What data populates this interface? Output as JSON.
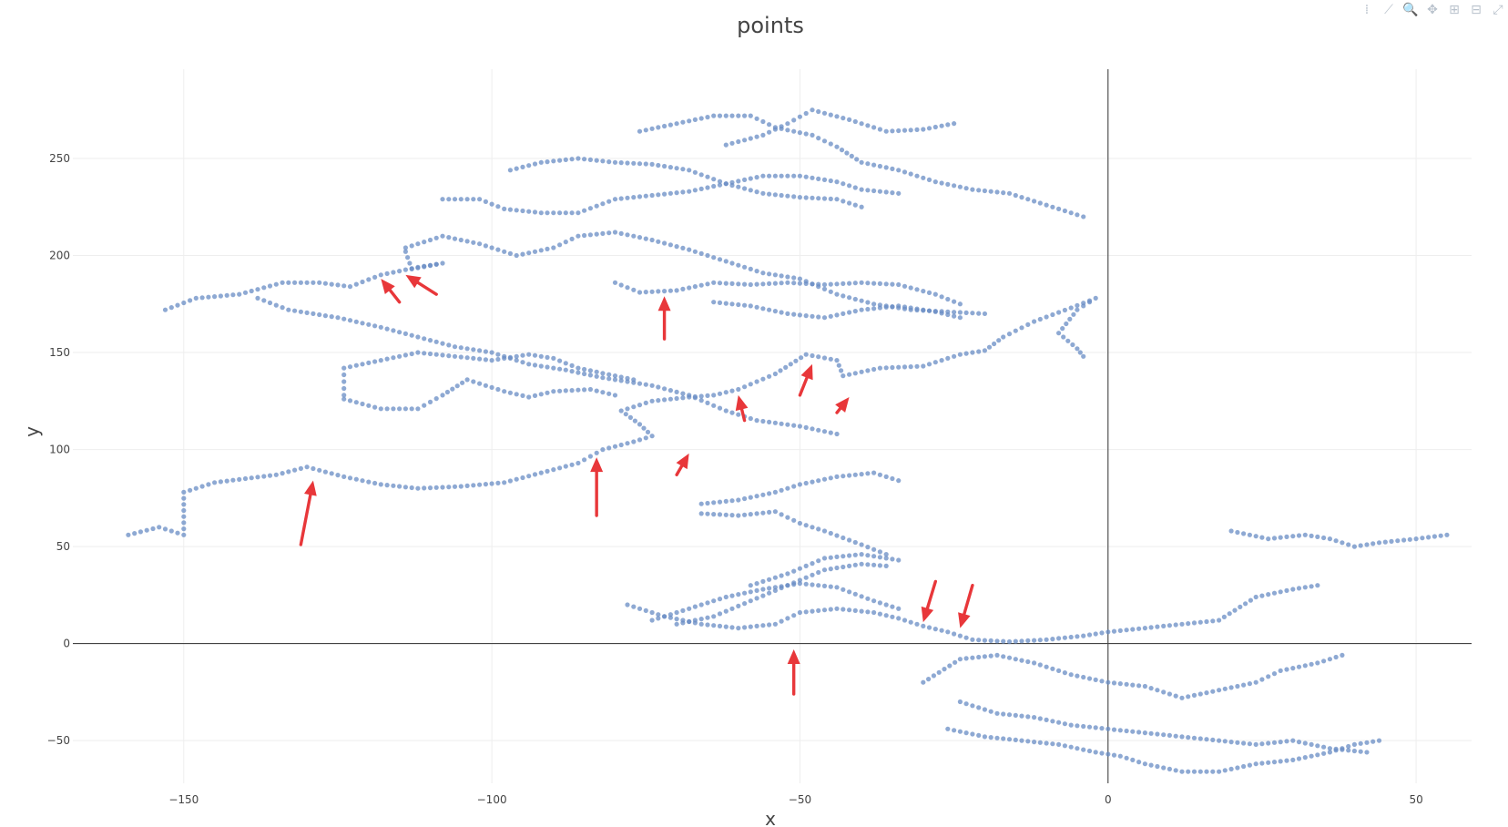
{
  "modebar": [
    {
      "name": "compare-icon",
      "glyph": "⁞"
    },
    {
      "name": "line-icon",
      "glyph": "⟋"
    },
    {
      "name": "zoom-icon",
      "glyph": "🔍"
    },
    {
      "name": "pan-icon",
      "glyph": "✥"
    },
    {
      "name": "zoom-in-icon",
      "glyph": "⊞"
    },
    {
      "name": "zoom-out-icon",
      "glyph": "⊟"
    },
    {
      "name": "autoscale-icon",
      "glyph": "⤢"
    }
  ],
  "chart_data": {
    "type": "scatter",
    "title": "points",
    "xlabel": "x",
    "ylabel": "y",
    "xlim": [
      -168,
      59
    ],
    "ylim": [
      -72,
      296
    ],
    "x_ticks": [
      -150,
      -100,
      -50,
      0,
      50
    ],
    "y_ticks": [
      -50,
      0,
      50,
      100,
      150,
      200,
      250
    ],
    "x_tick_labels": [
      "−150",
      "−100",
      "−50",
      "0",
      "50"
    ],
    "y_tick_labels": [
      "−50",
      "0",
      "50",
      "100",
      "150",
      "200",
      "250"
    ],
    "grid": true,
    "marker_color": "#688cc4",
    "annotation_color": "#e8373a",
    "paths": [
      [
        [
          -159,
          56
        ],
        [
          -154,
          60
        ],
        [
          -150,
          56
        ],
        [
          -150,
          78
        ],
        [
          -145,
          83
        ],
        [
          -140,
          85
        ],
        [
          -135,
          87
        ],
        [
          -130,
          91
        ],
        [
          -124,
          86
        ],
        [
          -118,
          82
        ],
        [
          -112,
          80
        ],
        [
          -105,
          81
        ],
        [
          -98,
          83
        ],
        [
          -92,
          88
        ],
        [
          -86,
          93
        ],
        [
          -82,
          100
        ],
        [
          -77,
          104
        ],
        [
          -74,
          107
        ],
        [
          -76,
          113
        ],
        [
          -79,
          120
        ],
        [
          -74,
          125
        ],
        [
          -68,
          127
        ],
        [
          -64,
          128
        ],
        [
          -60,
          131
        ],
        [
          -54,
          139
        ],
        [
          -49,
          149
        ],
        [
          -44,
          146
        ],
        [
          -43,
          138
        ],
        [
          -37,
          142
        ],
        [
          -30,
          143
        ],
        [
          -24,
          149
        ],
        [
          -20,
          151
        ],
        [
          -17,
          158
        ],
        [
          -12,
          166
        ],
        [
          -6,
          173
        ],
        [
          -2,
          178
        ],
        [
          -5,
          172
        ],
        [
          -8,
          160
        ],
        [
          -5,
          152
        ],
        [
          -4,
          148
        ]
      ],
      [
        [
          -153,
          172
        ],
        [
          -148,
          178
        ],
        [
          -141,
          180
        ],
        [
          -134,
          186
        ],
        [
          -128,
          186
        ],
        [
          -123,
          184
        ],
        [
          -118,
          190
        ],
        [
          -112,
          194
        ],
        [
          -108,
          196
        ],
        [
          -113,
          193
        ],
        [
          -114,
          202
        ]
      ],
      [
        [
          -138,
          178
        ],
        [
          -133,
          172
        ],
        [
          -125,
          168
        ],
        [
          -118,
          163
        ],
        [
          -112,
          158
        ],
        [
          -106,
          153
        ],
        [
          -100,
          150
        ],
        [
          -94,
          144
        ],
        [
          -88,
          141
        ],
        [
          -82,
          137
        ],
        [
          -74,
          133
        ],
        [
          -68,
          128
        ],
        [
          -62,
          120
        ],
        [
          -57,
          115
        ],
        [
          -50,
          112
        ],
        [
          -44,
          108
        ]
      ],
      [
        [
          -114,
          204
        ],
        [
          -108,
          210
        ],
        [
          -102,
          206
        ],
        [
          -96,
          200
        ],
        [
          -90,
          204
        ],
        [
          -86,
          210
        ],
        [
          -80,
          212
        ],
        [
          -74,
          208
        ],
        [
          -68,
          203
        ],
        [
          -62,
          197
        ],
        [
          -56,
          191
        ],
        [
          -50,
          188
        ],
        [
          -44,
          180
        ],
        [
          -38,
          175
        ],
        [
          -32,
          172
        ],
        [
          -26,
          171
        ],
        [
          -20,
          170
        ]
      ],
      [
        [
          -124,
          128
        ],
        [
          -124,
          142
        ],
        [
          -118,
          146
        ],
        [
          -112,
          150
        ],
        [
          -106,
          148
        ],
        [
          -100,
          146
        ],
        [
          -94,
          149
        ],
        [
          -90,
          147
        ],
        [
          -86,
          142
        ],
        [
          -80,
          138
        ],
        [
          -77,
          136
        ]
      ],
      [
        [
          -124,
          126
        ],
        [
          -118,
          121
        ],
        [
          -112,
          121
        ],
        [
          -108,
          128
        ],
        [
          -104,
          136
        ],
        [
          -98,
          130
        ],
        [
          -94,
          127
        ],
        [
          -90,
          130
        ],
        [
          -84,
          131
        ],
        [
          -80,
          128
        ]
      ],
      [
        [
          -108,
          229
        ],
        [
          -102,
          229
        ],
        [
          -98,
          224
        ],
        [
          -92,
          222
        ],
        [
          -86,
          222
        ],
        [
          -80,
          229
        ],
        [
          -74,
          231
        ],
        [
          -68,
          233
        ],
        [
          -62,
          237
        ],
        [
          -56,
          241
        ],
        [
          -50,
          241
        ],
        [
          -44,
          238
        ],
        [
          -40,
          234
        ],
        [
          -34,
          232
        ]
      ],
      [
        [
          -97,
          244
        ],
        [
          -92,
          248
        ],
        [
          -86,
          250
        ],
        [
          -80,
          248
        ],
        [
          -74,
          247
        ],
        [
          -68,
          244
        ],
        [
          -62,
          237
        ],
        [
          -56,
          232
        ],
        [
          -50,
          230
        ],
        [
          -44,
          229
        ],
        [
          -40,
          225
        ]
      ],
      [
        [
          -76,
          264
        ],
        [
          -70,
          268
        ],
        [
          -64,
          272
        ],
        [
          -58,
          272
        ],
        [
          -54,
          266
        ],
        [
          -48,
          262
        ],
        [
          -44,
          256
        ],
        [
          -40,
          248
        ],
        [
          -34,
          244
        ],
        [
          -28,
          238
        ],
        [
          -22,
          234
        ],
        [
          -16,
          232
        ],
        [
          -10,
          226
        ],
        [
          -4,
          220
        ]
      ],
      [
        [
          -62,
          257
        ],
        [
          -56,
          262
        ],
        [
          -52,
          268
        ],
        [
          -48,
          275
        ],
        [
          -42,
          270
        ],
        [
          -36,
          264
        ],
        [
          -30,
          265
        ],
        [
          -25,
          268
        ]
      ],
      [
        [
          -80,
          186
        ],
        [
          -76,
          181
        ],
        [
          -70,
          182
        ],
        [
          -64,
          186
        ],
        [
          -58,
          185
        ],
        [
          -52,
          186
        ],
        [
          -46,
          185
        ],
        [
          -40,
          186
        ],
        [
          -34,
          185
        ],
        [
          -28,
          180
        ],
        [
          -24,
          175
        ]
      ],
      [
        [
          -64,
          176
        ],
        [
          -58,
          174
        ],
        [
          -52,
          170
        ],
        [
          -46,
          168
        ],
        [
          -40,
          172
        ],
        [
          -34,
          174
        ],
        [
          -28,
          171
        ],
        [
          -24,
          168
        ]
      ],
      [
        [
          -66,
          72
        ],
        [
          -60,
          74
        ],
        [
          -54,
          78
        ],
        [
          -50,
          82
        ],
        [
          -44,
          86
        ],
        [
          -38,
          88
        ],
        [
          -34,
          84
        ]
      ],
      [
        [
          -66,
          67
        ],
        [
          -60,
          66
        ],
        [
          -54,
          68
        ],
        [
          -50,
          62
        ],
        [
          -46,
          58
        ],
        [
          -40,
          51
        ],
        [
          -36,
          46
        ]
      ],
      [
        [
          -78,
          20
        ],
        [
          -72,
          14
        ],
        [
          -66,
          10
        ],
        [
          -60,
          8
        ],
        [
          -54,
          10
        ],
        [
          -50,
          16
        ],
        [
          -44,
          18
        ],
        [
          -38,
          16
        ],
        [
          -34,
          13
        ],
        [
          -30,
          9
        ],
        [
          -26,
          6
        ],
        [
          -22,
          2
        ],
        [
          -16,
          1
        ],
        [
          -10,
          2
        ],
        [
          -4,
          4
        ],
        [
          0,
          6
        ],
        [
          6,
          8
        ],
        [
          12,
          10
        ],
        [
          18,
          12
        ],
        [
          24,
          24
        ],
        [
          30,
          28
        ],
        [
          34,
          30
        ]
      ],
      [
        [
          -74,
          12
        ],
        [
          -68,
          18
        ],
        [
          -62,
          24
        ],
        [
          -56,
          28
        ],
        [
          -50,
          31
        ],
        [
          -44,
          29
        ],
        [
          -38,
          22
        ],
        [
          -34,
          18
        ]
      ],
      [
        [
          -70,
          10
        ],
        [
          -64,
          14
        ],
        [
          -58,
          22
        ],
        [
          -52,
          30
        ],
        [
          -46,
          38
        ],
        [
          -40,
          41
        ],
        [
          -36,
          40
        ]
      ],
      [
        [
          -58,
          30
        ],
        [
          -52,
          36
        ],
        [
          -46,
          44
        ],
        [
          -40,
          46
        ],
        [
          -34,
          43
        ]
      ],
      [
        [
          -30,
          -20
        ],
        [
          -24,
          -8
        ],
        [
          -18,
          -6
        ],
        [
          -12,
          -10
        ],
        [
          -6,
          -16
        ],
        [
          0,
          -20
        ],
        [
          6,
          -22
        ],
        [
          12,
          -28
        ],
        [
          18,
          -24
        ],
        [
          24,
          -20
        ],
        [
          28,
          -14
        ],
        [
          34,
          -10
        ],
        [
          38,
          -6
        ]
      ],
      [
        [
          -26,
          -44
        ],
        [
          -20,
          -48
        ],
        [
          -14,
          -50
        ],
        [
          -8,
          -52
        ],
        [
          -2,
          -56
        ],
        [
          2,
          -58
        ],
        [
          6,
          -62
        ],
        [
          12,
          -66
        ],
        [
          18,
          -66
        ],
        [
          24,
          -62
        ],
        [
          30,
          -60
        ],
        [
          36,
          -56
        ],
        [
          40,
          -52
        ],
        [
          44,
          -50
        ]
      ],
      [
        [
          -24,
          -30
        ],
        [
          -18,
          -36
        ],
        [
          -12,
          -38
        ],
        [
          -6,
          -42
        ],
        [
          0,
          -44
        ],
        [
          6,
          -46
        ],
        [
          12,
          -48
        ],
        [
          18,
          -50
        ],
        [
          24,
          -52
        ],
        [
          30,
          -50
        ],
        [
          36,
          -54
        ],
        [
          42,
          -56
        ]
      ],
      [
        [
          20,
          58
        ],
        [
          26,
          54
        ],
        [
          32,
          56
        ],
        [
          36,
          54
        ],
        [
          40,
          50
        ],
        [
          44,
          52
        ],
        [
          50,
          54
        ],
        [
          55,
          56
        ]
      ]
    ],
    "annotations": [
      {
        "tail": [
          -131,
          51
        ],
        "head": [
          -129,
          84
        ]
      },
      {
        "tail": [
          -83,
          66
        ],
        "head": [
          -83,
          96
        ]
      },
      {
        "tail": [
          -115,
          176
        ],
        "head": [
          -118,
          188
        ]
      },
      {
        "tail": [
          -109,
          180
        ],
        "head": [
          -114,
          190
        ]
      },
      {
        "tail": [
          -72,
          157
        ],
        "head": [
          -72,
          179
        ]
      },
      {
        "tail": [
          -59,
          115
        ],
        "head": [
          -60,
          128
        ]
      },
      {
        "tail": [
          -50,
          128
        ],
        "head": [
          -48,
          144
        ]
      },
      {
        "tail": [
          -44,
          119
        ],
        "head": [
          -42,
          127
        ]
      },
      {
        "tail": [
          -70,
          87
        ],
        "head": [
          -68,
          98
        ]
      },
      {
        "tail": [
          -51,
          -26
        ],
        "head": [
          -51,
          -3
        ]
      },
      {
        "tail": [
          -28,
          32
        ],
        "head": [
          -30,
          11
        ]
      },
      {
        "tail": [
          -22,
          30
        ],
        "head": [
          -24,
          8
        ]
      }
    ]
  }
}
